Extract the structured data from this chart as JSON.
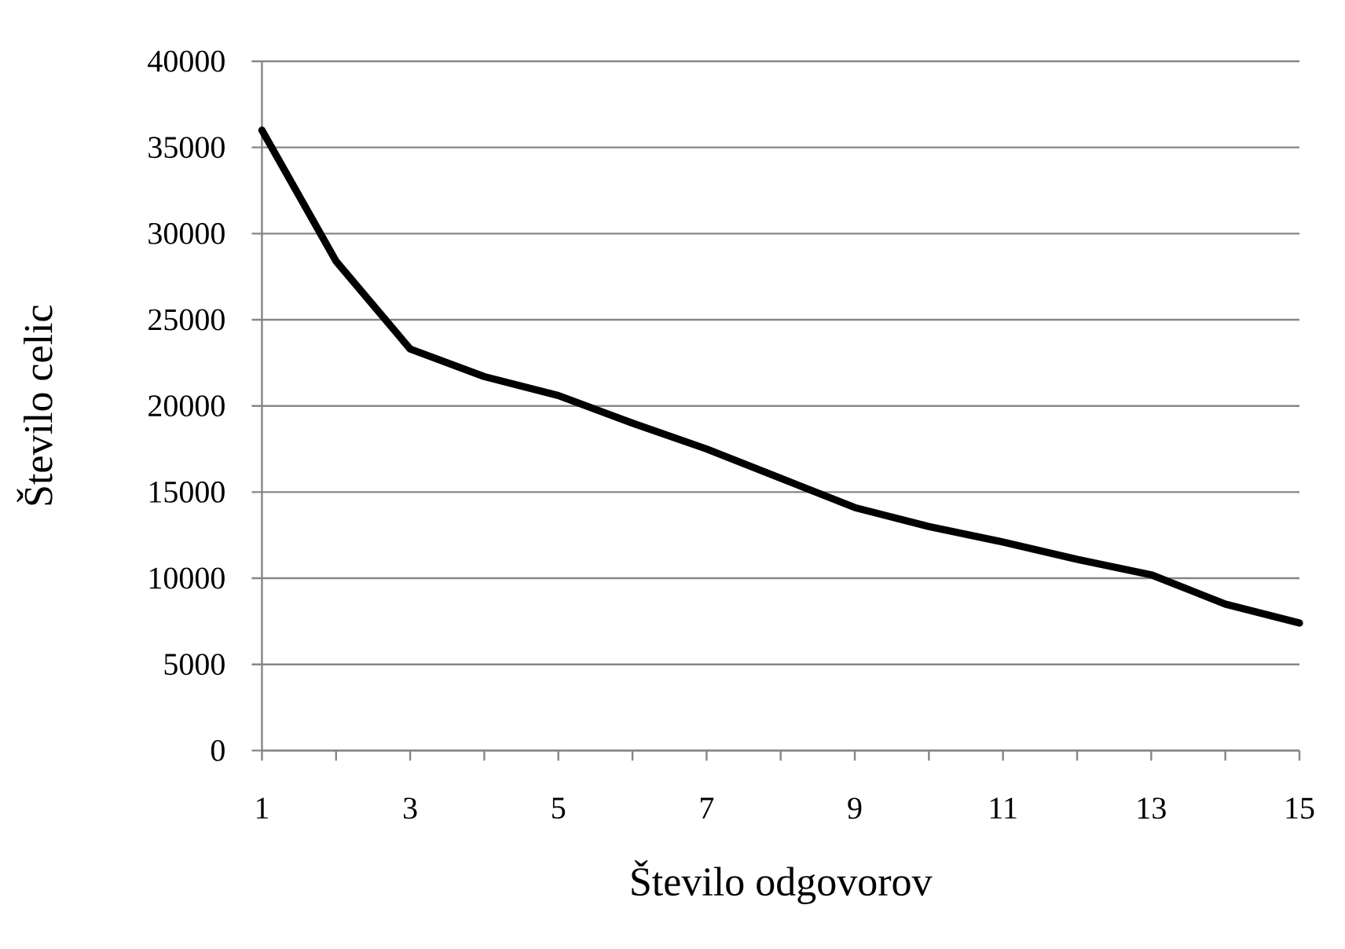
{
  "chart_data": {
    "type": "line",
    "xlabel": "Število odgovorov",
    "ylabel": "Število celic",
    "x": [
      1,
      2,
      3,
      4,
      5,
      6,
      7,
      8,
      9,
      10,
      11,
      12,
      13,
      14,
      15
    ],
    "xlim": [
      1,
      15
    ],
    "xticks": [
      1,
      {
        "value": 2,
        "label": null
      },
      3,
      {
        "value": 4,
        "label": null
      },
      5,
      {
        "value": 6,
        "label": null
      },
      7,
      {
        "value": 8,
        "label": null
      },
      9,
      {
        "value": 10,
        "label": null
      },
      11,
      {
        "value": 12,
        "label": null
      },
      13,
      {
        "value": 14,
        "label": null
      },
      15
    ],
    "ylim": [
      0,
      40000
    ],
    "yticks": [
      0,
      5000,
      10000,
      15000,
      20000,
      25000,
      30000,
      35000,
      40000
    ],
    "grid": "y",
    "marker": "none",
    "line_style": "solid",
    "series": [
      {
        "color": "#000000",
        "values": [
          36000,
          28400,
          23300,
          21700,
          20600,
          19000,
          17500,
          15800,
          14100,
          13000,
          12100,
          11100,
          10200,
          8500,
          7400
        ]
      }
    ]
  }
}
